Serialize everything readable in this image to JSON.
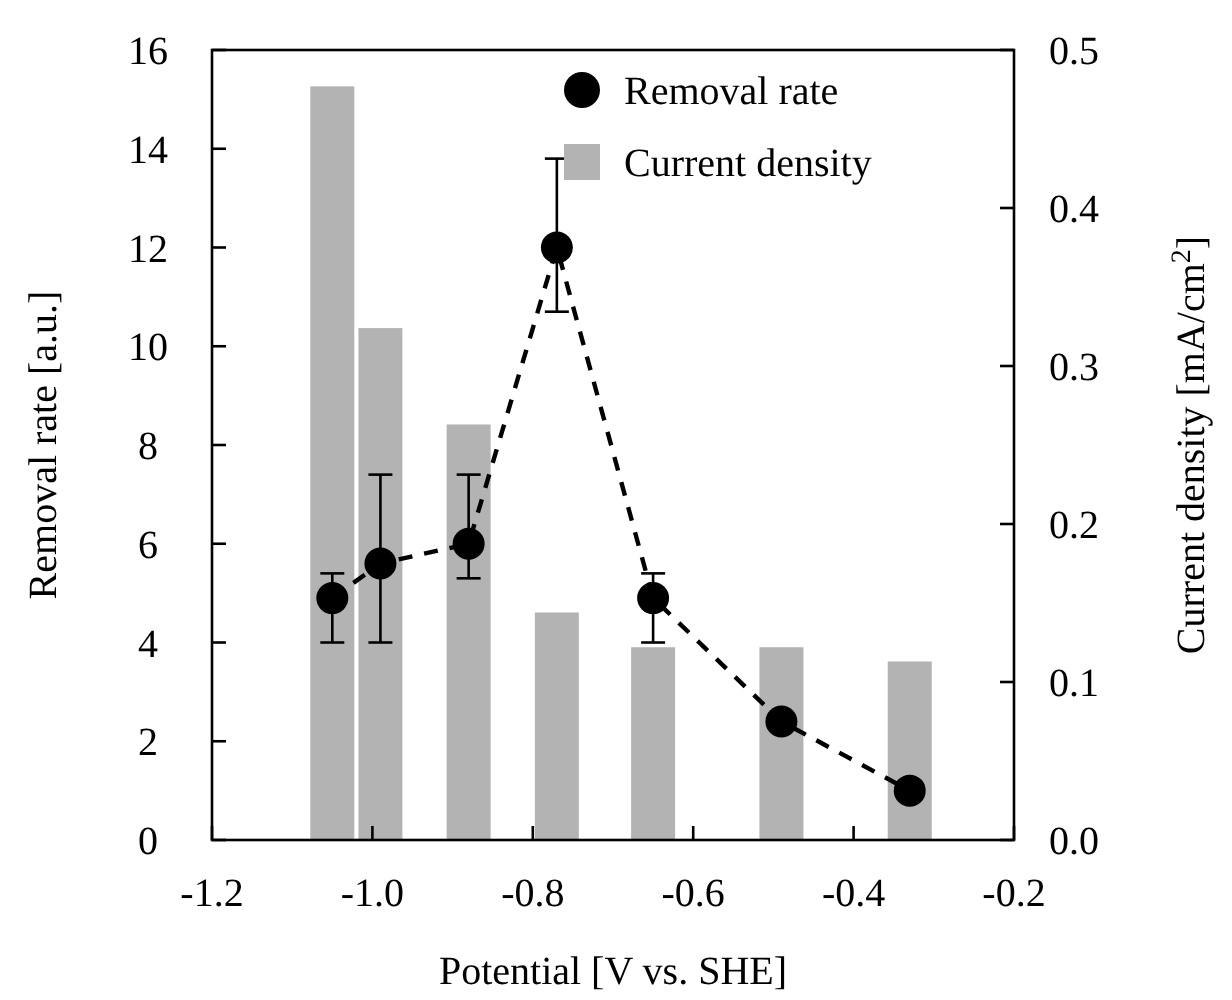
{
  "chart_data": {
    "type": "line",
    "xlabel": "Potential [V vs. SHE]",
    "ylabel": "Removal rate [a.u.]",
    "y2label": "Current density [mA/cm$^{2}$]",
    "xlim": [
      -1.2,
      -0.2
    ],
    "xticks": [
      {
        "value": -1.2,
        "label": "-1.2"
      },
      {
        "value": -1.0,
        "label": "-1.0"
      },
      {
        "value": -0.8,
        "label": "-0.8"
      },
      {
        "value": -0.6,
        "label": "-0.6"
      },
      {
        "value": -0.4,
        "label": "-0.4"
      },
      {
        "value": -0.2,
        "label": "-0.2"
      }
    ],
    "ylim": [
      0,
      16
    ],
    "yticks": [
      0,
      2,
      4,
      6,
      8,
      10,
      12,
      14,
      16
    ],
    "y2lim": [
      0,
      0.5
    ],
    "y2ticks": [
      {
        "value": 0,
        "label": "0.0"
      },
      0.1,
      0.2,
      0.3,
      0.4,
      0.5
    ],
    "legend": "top right",
    "grid": false,
    "series": [
      {
        "name": "Removal rate",
        "color": "#000000",
        "marker": "circle",
        "line_style": "dashed",
        "x": [
          -1.05,
          -0.99,
          -0.88,
          -0.77,
          -0.65,
          -0.49,
          -0.33
        ],
        "values": [
          4.9,
          5.6,
          6.0,
          12.0,
          4.9,
          2.4,
          1.0
        ],
        "errors": [
          [
            4.0,
            5.4
          ],
          [
            4.0,
            7.4
          ],
          [
            5.3,
            7.4
          ],
          [
            10.7,
            13.8
          ],
          [
            4.0,
            5.4
          ],
          null,
          null
        ]
      },
      {
        "name": "Current density",
        "type": "bar",
        "axis": "y2",
        "color": "#b3b3b3",
        "x": [
          -1.05,
          -0.99,
          -0.88,
          -0.77,
          -0.65,
          -0.49,
          -0.33
        ],
        "values": [
          0.477,
          0.324,
          0.263,
          0.144,
          0.122,
          0.122,
          0.113
        ]
      }
    ]
  }
}
